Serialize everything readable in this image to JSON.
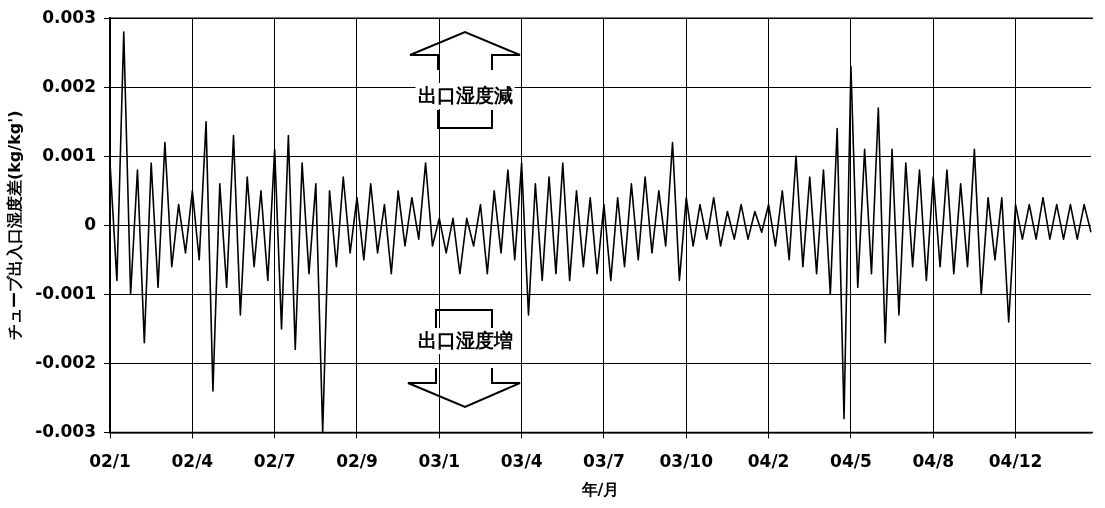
{
  "chart_data": {
    "type": "line",
    "xlabel": "年/月",
    "ylabel": "チューブ出入口湿度差(kg/kg')",
    "annotations": [
      "出口湿度減",
      "出口湿度増"
    ],
    "categories": [
      "02/1",
      null,
      null,
      null,
      null,
      null,
      null,
      null,
      null,
      null,
      null,
      null,
      "02/4",
      null,
      null,
      null,
      null,
      null,
      null,
      null,
      null,
      null,
      null,
      null,
      "02/7",
      null,
      null,
      null,
      null,
      null,
      null,
      null,
      null,
      null,
      null,
      null,
      "02/9",
      null,
      null,
      null,
      null,
      null,
      null,
      null,
      null,
      null,
      null,
      null,
      "03/1",
      null,
      null,
      null,
      null,
      null,
      null,
      null,
      null,
      null,
      null,
      null,
      "03/4",
      null,
      null,
      null,
      null,
      null,
      null,
      null,
      null,
      null,
      null,
      null,
      "03/7",
      null,
      null,
      null,
      null,
      null,
      null,
      null,
      null,
      null,
      null,
      null,
      "03/10",
      null,
      null,
      null,
      null,
      null,
      null,
      null,
      null,
      null,
      null,
      null,
      "04/2",
      null,
      null,
      null,
      null,
      null,
      null,
      null,
      null,
      null,
      null,
      null,
      "04/5",
      null,
      null,
      null,
      null,
      null,
      null,
      null,
      null,
      null,
      null,
      null,
      "04/8",
      null,
      null,
      null,
      null,
      null,
      null,
      null,
      null,
      null,
      null,
      null,
      "04/12",
      null,
      null,
      null,
      null,
      null,
      null,
      null,
      null,
      null,
      null,
      null
    ],
    "series": [
      {
        "color": "#000000",
        "values": [
          0.0009,
          -0.0008,
          0.0028,
          -0.001,
          0.0008,
          -0.0017,
          0.0009,
          -0.0009,
          0.0012,
          -0.0006,
          0.0003,
          -0.0004,
          0.0005,
          -0.0005,
          0.0015,
          -0.0024,
          0.0006,
          -0.0009,
          0.0013,
          -0.0013,
          0.0007,
          -0.0006,
          0.0005,
          -0.0008,
          0.0011,
          -0.0015,
          0.0013,
          -0.0018,
          0.0009,
          -0.0007,
          0.0006,
          -0.003,
          0.0005,
          -0.0006,
          0.0007,
          -0.0004,
          0.0004,
          -0.0005,
          0.0006,
          -0.0004,
          0.0003,
          -0.0007,
          0.0005,
          -0.0003,
          0.0004,
          -0.0002,
          0.0009,
          -0.0003,
          0.0001,
          -0.0004,
          0.0001,
          -0.0007,
          0.0001,
          -0.0003,
          0.0003,
          -0.0007,
          0.0005,
          -0.0004,
          0.0008,
          -0.0005,
          0.0009,
          -0.0013,
          0.0006,
          -0.0008,
          0.0007,
          -0.0007,
          0.0009,
          -0.0008,
          0.0005,
          -0.0006,
          0.0004,
          -0.0007,
          0.0003,
          -0.0008,
          0.0004,
          -0.0006,
          0.0006,
          -0.0005,
          0.0007,
          -0.0004,
          0.0005,
          -0.0003,
          0.0012,
          -0.0008,
          0.0004,
          -0.0003,
          0.0003,
          -0.0002,
          0.0004,
          -0.0003,
          0.0002,
          -0.0002,
          0.0003,
          -0.0002,
          0.0002,
          -0.0001,
          0.0003,
          -0.0003,
          0.0005,
          -0.0005,
          0.001,
          -0.0006,
          0.0007,
          -0.0007,
          0.0008,
          -0.001,
          0.0014,
          -0.0028,
          0.0023,
          -0.0009,
          0.0011,
          -0.0007,
          0.0017,
          -0.0017,
          0.0011,
          -0.0013,
          0.0009,
          -0.0006,
          0.0008,
          -0.0008,
          0.0007,
          -0.0006,
          0.0008,
          -0.0007,
          0.0006,
          -0.0006,
          0.0011,
          -0.001,
          0.0004,
          -0.0005,
          0.0004,
          -0.0014,
          0.0003,
          -0.0002,
          0.0003,
          -0.0002,
          0.0004,
          -0.0002,
          0.0003,
          -0.0002,
          0.0003,
          -0.0002,
          0.0003,
          -0.0001
        ]
      }
    ],
    "ylim": [
      -0.003,
      0.003
    ],
    "yticks": [
      -0.003,
      -0.002,
      -0.001,
      0,
      0.001,
      0.002,
      0.003
    ],
    "grid": true,
    "legend": false,
    "marker": "none",
    "line_style": "solid"
  }
}
